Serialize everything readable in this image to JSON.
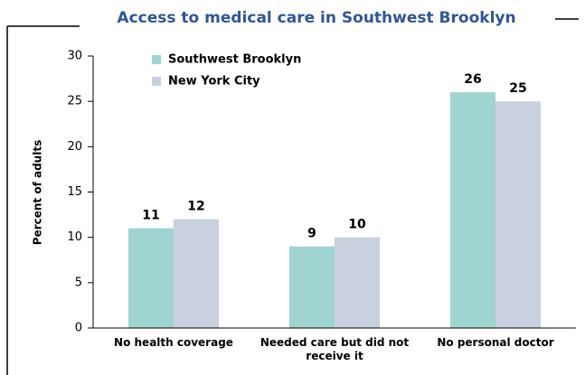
{
  "chart_data": {
    "type": "bar",
    "title": "Access to medical care in Southwest Brooklyn",
    "y_label": "Percent of adults",
    "categories": [
      "No health coverage",
      "Needed care but did not receive it",
      "No personal doctor"
    ],
    "series": [
      {
        "name": "Southwest Brooklyn",
        "color": "#a0d4d1",
        "values": [
          11,
          9,
          26
        ]
      },
      {
        "name": "New York City",
        "color": "#c9d0de",
        "values": [
          12,
          10,
          25
        ]
      }
    ],
    "ylim": [
      0,
      30
    ],
    "yticks": [
      0,
      5,
      10,
      15,
      20,
      25,
      30
    ],
    "grid": false,
    "legend": "top-left"
  }
}
